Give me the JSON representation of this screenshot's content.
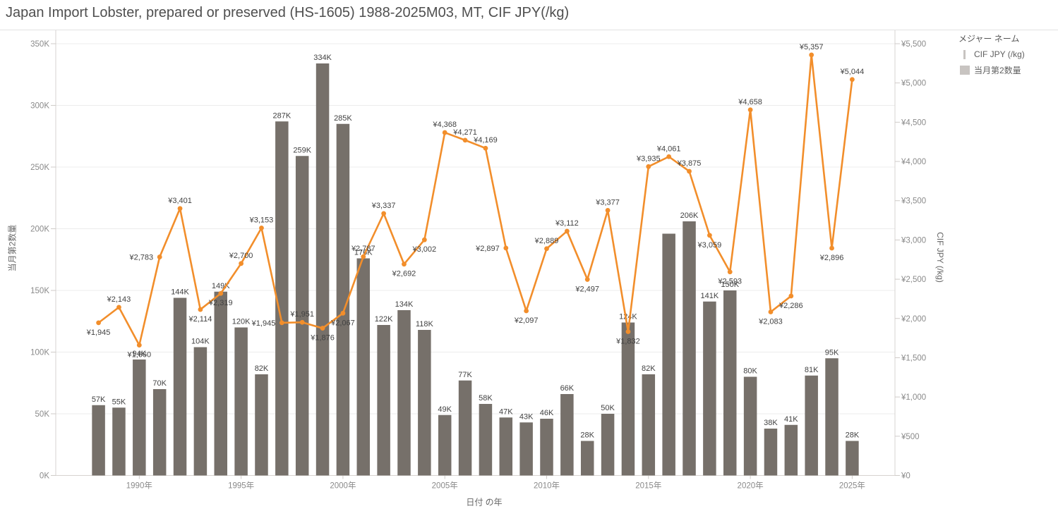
{
  "title": "Japan Import Lobster, prepared or preserved (HS-1605) 1988-2025M03, MT, CIF JPY(/kg)",
  "legend": {
    "header": "メジャー ネーム",
    "items": [
      {
        "label": "CIF JPY (/kg)",
        "icon": "line-mark-icon",
        "swatch_color": "#c8c4c1"
      },
      {
        "label": "当月第2数量",
        "icon": "square-mark-icon",
        "swatch_color": "#c8c4c1"
      }
    ]
  },
  "chart_data": {
    "type": "combo (bar + line, dual axis)",
    "title": "Japan Import Lobster, prepared or preserved (HS-1605) 1988-2025M03, MT, CIF JPY(/kg)",
    "xlabel": "日付 の年",
    "ylabel_left": "当月第2数量",
    "ylabel_right": "CIF JPY (/kg)",
    "categories": [
      1988,
      1989,
      1990,
      1991,
      1992,
      1993,
      1994,
      1995,
      1996,
      1997,
      1998,
      1999,
      2000,
      2001,
      2002,
      2003,
      2004,
      2005,
      2006,
      2007,
      2008,
      2009,
      2010,
      2011,
      2012,
      2013,
      2014,
      2015,
      2016,
      2017,
      2018,
      2019,
      2020,
      2021,
      2022,
      2023,
      2024,
      2025
    ],
    "series": [
      {
        "name": "当月第2数量",
        "type": "bar",
        "axis": "left",
        "unit": "K (thousand, MT)",
        "color": "#76706a",
        "values": [
          57,
          55,
          94,
          70,
          144,
          104,
          149,
          120,
          82,
          287,
          259,
          334,
          285,
          176,
          122,
          134,
          118,
          49,
          77,
          58,
          47,
          43,
          46,
          66,
          28,
          50,
          124,
          82,
          196,
          206,
          141,
          150,
          80,
          38,
          41,
          81,
          95,
          28
        ],
        "labels": [
          "57K",
          "55K",
          "94K",
          "70K",
          "144K",
          "104K",
          "149K",
          "120K",
          "82K",
          "287K",
          "259K",
          "334K",
          "285K",
          "176K",
          "122K",
          "134K",
          "118K",
          "49K",
          "77K",
          "58K",
          "47K",
          "43K",
          "46K",
          "66K",
          "28K",
          "50K",
          "124K",
          "82K",
          "",
          "206K",
          "141K",
          "150K",
          "80K",
          "38K",
          "41K",
          "81K",
          "95K",
          "28K"
        ]
      },
      {
        "name": "CIF JPY (/kg)",
        "type": "line",
        "axis": "right",
        "unit": "JPY per kg",
        "color": "#f28e2b",
        "values": [
          1945,
          2143,
          1660,
          2783,
          3401,
          2114,
          2319,
          2700,
          3153,
          1945,
          1951,
          1876,
          2067,
          2787,
          3337,
          2692,
          3002,
          4368,
          4271,
          4169,
          2897,
          2097,
          2889,
          3112,
          2497,
          3377,
          1832,
          3935,
          4061,
          3875,
          3059,
          2593,
          4658,
          2083,
          2286,
          5357,
          2896,
          5044
        ],
        "labels": [
          "¥1,945",
          "¥2,143",
          "¥1,660",
          "¥2,783",
          "¥3,401",
          "¥2,114",
          "¥2,319",
          "¥2,700",
          "¥3,153",
          "¥1,945",
          "¥1,951",
          "¥1,876",
          "¥2,067",
          "¥2,787",
          "¥3,337",
          "¥2,692",
          "¥3,002",
          "¥4,368",
          "¥4,271",
          "¥4,169",
          "¥2,897",
          "¥2,097",
          "¥2,889",
          "¥3,112",
          "¥2,497",
          "¥3,377",
          "¥1,832",
          "¥3,935",
          "¥4,061",
          "¥3,875",
          "¥3,059",
          "¥2,593",
          "¥4,658",
          "¥2,083",
          "¥2,286",
          "¥5,357",
          "¥2,896",
          "¥5,044"
        ],
        "label_side": [
          "below",
          "above",
          "below",
          "left",
          "above",
          "below",
          "below",
          "above",
          "above",
          "left",
          "above",
          "below",
          "below",
          "above",
          "above",
          "below",
          "below",
          "above",
          "above",
          "above",
          "left",
          "below",
          "above",
          "above",
          "below",
          "above",
          "below",
          "above",
          "above",
          "above",
          "below",
          "below",
          "above",
          "below",
          "below",
          "above",
          "below",
          "above"
        ]
      }
    ],
    "ylim_left": [
      0,
      350
    ],
    "y_left_tick_step": 50,
    "y_left_tick_labels": [
      "0K",
      "50K",
      "100K",
      "150K",
      "200K",
      "250K",
      "300K",
      "350K"
    ],
    "ylim_right": [
      0,
      5500
    ],
    "y_right_tick_step": 500,
    "y_right_tick_labels": [
      "¥0",
      "¥500",
      "¥1,000",
      "¥1,500",
      "¥2,000",
      "¥2,500",
      "¥3,000",
      "¥3,500",
      "¥4,000",
      "¥4,500",
      "¥5,000",
      "¥5,500"
    ],
    "x_axis_range": [
      1985.9,
      2027.1
    ],
    "x_tick_years": [
      1990,
      1995,
      2000,
      2005,
      2010,
      2015,
      2020,
      2025
    ],
    "x_tick_labels": [
      "1990年",
      "1995年",
      "2000年",
      "2005年",
      "2010年",
      "2015年",
      "2020年",
      "2025年"
    ],
    "grid": "horizontal only",
    "legend_position": "top-right"
  }
}
